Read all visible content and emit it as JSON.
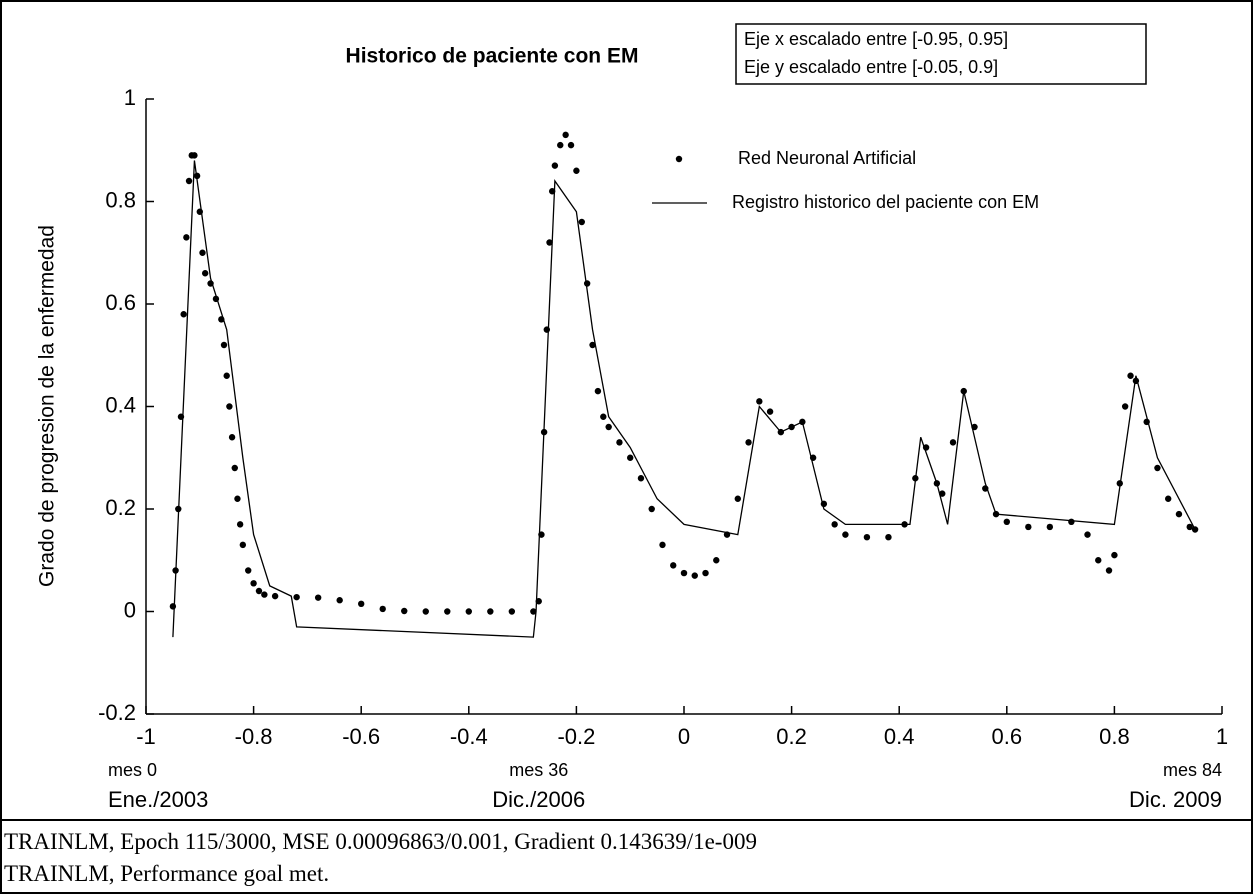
{
  "chart_data": {
    "type": "scatter-line",
    "title": "Historico de paciente con EM",
    "annotation": [
      "Eje x escalado entre [-0.95, 0.95]",
      "Eje y escalado entre [-0.05, 0.9]"
    ],
    "ylabel": "Grado de progresion de la enfermedad",
    "xlim": [
      -1,
      1
    ],
    "ylim": [
      -0.2,
      1
    ],
    "xticks": [
      -1,
      -0.8,
      -0.6,
      -0.4,
      -0.2,
      0,
      0.2,
      0.4,
      0.6,
      0.8,
      1
    ],
    "yticks": [
      -0.2,
      0,
      0.2,
      0.4,
      0.6,
      0.8,
      1
    ],
    "period_labels": [
      {
        "x": -0.95,
        "month": "mes 0",
        "date": "Ene./2003"
      },
      {
        "x": -0.27,
        "month": "mes 36",
        "date": "Dic./2006"
      },
      {
        "x": 0.95,
        "month": "mes 84",
        "date": "Dic. 2009"
      }
    ],
    "series": [
      {
        "name": "Red Neuronal Artificial",
        "style": "dots",
        "color": "#000000",
        "x": [
          -0.95,
          -0.945,
          -0.94,
          -0.935,
          -0.93,
          -0.925,
          -0.92,
          -0.915,
          -0.91,
          -0.905,
          -0.9,
          -0.895,
          -0.89,
          -0.88,
          -0.87,
          -0.86,
          -0.855,
          -0.85,
          -0.845,
          -0.84,
          -0.835,
          -0.83,
          -0.825,
          -0.82,
          -0.81,
          -0.8,
          -0.79,
          -0.78,
          -0.76,
          -0.72,
          -0.68,
          -0.64,
          -0.6,
          -0.56,
          -0.52,
          -0.48,
          -0.44,
          -0.4,
          -0.36,
          -0.32,
          -0.28,
          -0.27,
          -0.265,
          -0.26,
          -0.255,
          -0.25,
          -0.245,
          -0.24,
          -0.23,
          -0.22,
          -0.21,
          -0.2,
          -0.19,
          -0.18,
          -0.17,
          -0.16,
          -0.15,
          -0.14,
          -0.12,
          -0.1,
          -0.08,
          -0.06,
          -0.04,
          -0.02,
          0,
          0.02,
          0.04,
          0.06,
          0.08,
          0.1,
          0.12,
          0.14,
          0.16,
          0.18,
          0.2,
          0.22,
          0.24,
          0.26,
          0.28,
          0.3,
          0.34,
          0.38,
          0.41,
          0.43,
          0.45,
          0.47,
          0.48,
          0.5,
          0.52,
          0.54,
          0.56,
          0.58,
          0.6,
          0.64,
          0.68,
          0.72,
          0.75,
          0.77,
          0.79,
          0.8,
          0.81,
          0.82,
          0.83,
          0.84,
          0.86,
          0.88,
          0.9,
          0.92,
          0.94,
          0.95
        ],
        "values": [
          0.01,
          0.08,
          0.2,
          0.38,
          0.58,
          0.73,
          0.84,
          0.89,
          0.89,
          0.85,
          0.78,
          0.7,
          0.66,
          0.64,
          0.61,
          0.57,
          0.52,
          0.46,
          0.4,
          0.34,
          0.28,
          0.22,
          0.17,
          0.13,
          0.08,
          0.055,
          0.04,
          0.033,
          0.03,
          0.028,
          0.027,
          0.022,
          0.015,
          0.005,
          0.001,
          0,
          0,
          0,
          0,
          0,
          0,
          0.02,
          0.15,
          0.35,
          0.55,
          0.72,
          0.82,
          0.87,
          0.91,
          0.93,
          0.91,
          0.86,
          0.76,
          0.64,
          0.52,
          0.43,
          0.38,
          0.36,
          0.33,
          0.3,
          0.26,
          0.2,
          0.13,
          0.09,
          0.075,
          0.07,
          0.075,
          0.1,
          0.15,
          0.22,
          0.33,
          0.41,
          0.39,
          0.35,
          0.36,
          0.37,
          0.3,
          0.21,
          0.17,
          0.15,
          0.145,
          0.145,
          0.17,
          0.26,
          0.32,
          0.25,
          0.23,
          0.33,
          0.43,
          0.36,
          0.24,
          0.19,
          0.175,
          0.165,
          0.165,
          0.175,
          0.15,
          0.1,
          0.08,
          0.11,
          0.25,
          0.4,
          0.46,
          0.45,
          0.37,
          0.28,
          0.22,
          0.19,
          0.165,
          0.16
        ]
      },
      {
        "name": "Registro historico del paciente con EM",
        "style": "line",
        "color": "#000000",
        "x": [
          -0.95,
          -0.91,
          -0.88,
          -0.85,
          -0.82,
          -0.8,
          -0.77,
          -0.73,
          -0.72,
          -0.28,
          -0.275,
          -0.24,
          -0.2,
          -0.17,
          -0.14,
          -0.1,
          -0.05,
          0,
          0.1,
          0.14,
          0.18,
          0.22,
          0.26,
          0.3,
          0.42,
          0.44,
          0.47,
          0.49,
          0.52,
          0.56,
          0.58,
          0.8,
          0.84,
          0.88,
          0.95
        ],
        "values": [
          -0.05,
          0.88,
          0.65,
          0.55,
          0.3,
          0.15,
          0.05,
          0.03,
          -0.03,
          -0.05,
          0,
          0.84,
          0.78,
          0.55,
          0.38,
          0.32,
          0.22,
          0.17,
          0.15,
          0.4,
          0.35,
          0.37,
          0.2,
          0.17,
          0.17,
          0.34,
          0.25,
          0.17,
          0.43,
          0.25,
          0.19,
          0.17,
          0.46,
          0.3,
          0.16
        ]
      }
    ]
  },
  "status_lines": [
    "TRAINLM, Epoch 115/3000, MSE 0.00096863/0.001, Gradient 0.143639/1e-009",
    "TRAINLM, Performance goal met."
  ]
}
